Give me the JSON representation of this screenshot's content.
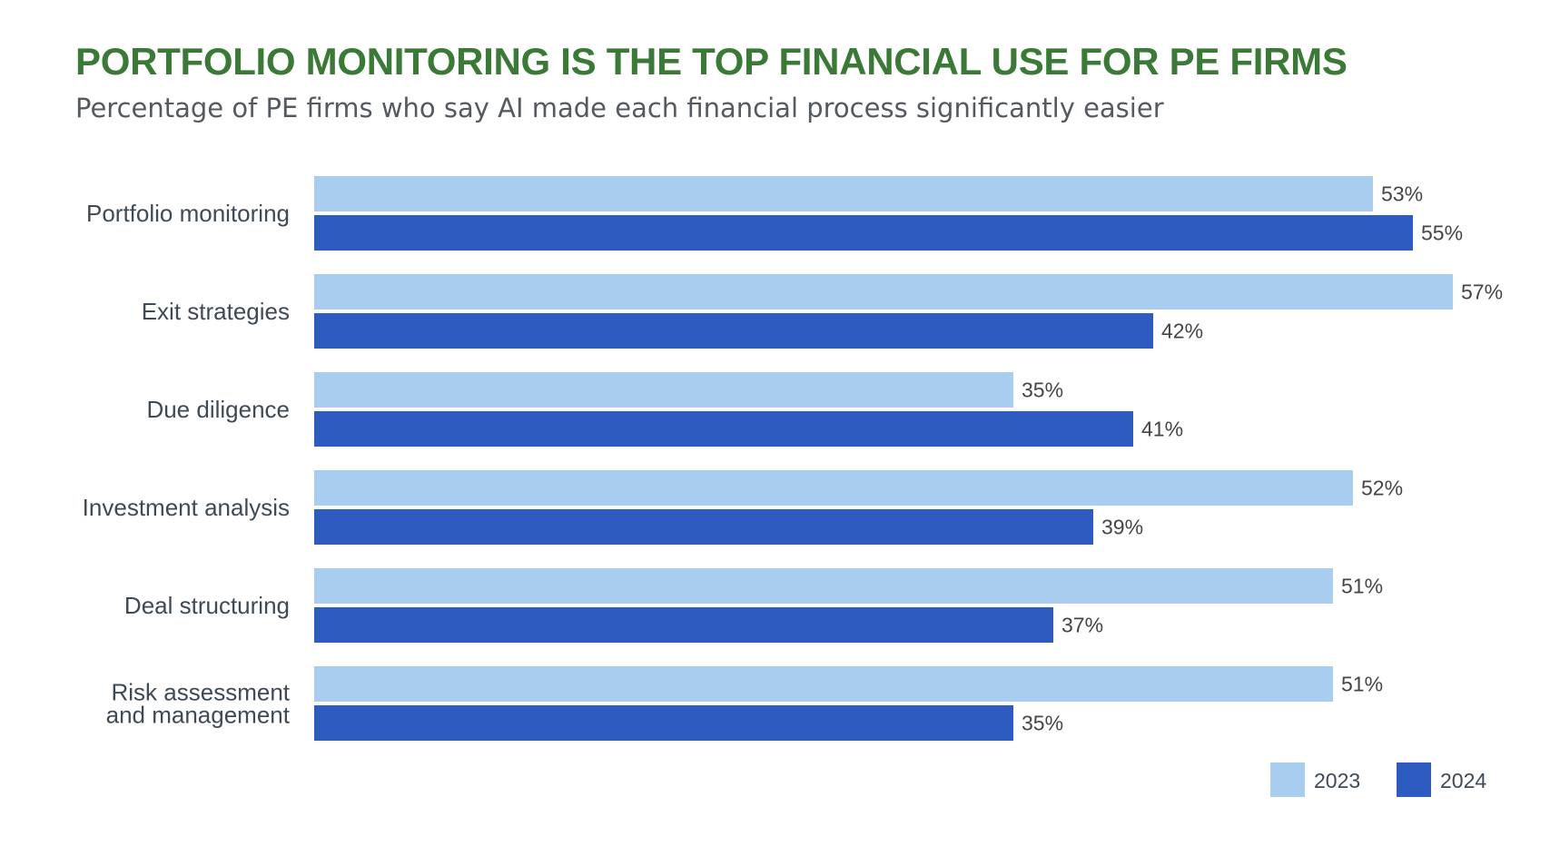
{
  "colors": {
    "title": "#3a7a36",
    "subtitle": "#555a60",
    "series_2023": "#a9cdef",
    "series_2024": "#2d5bc0"
  },
  "chart_data": {
    "type": "bar",
    "orientation": "horizontal",
    "title": "PORTFOLIO MONITORING IS THE TOP FINANCIAL USE FOR PE FIRMS",
    "subtitle": "Percentage of PE firms who say AI made each financial process significantly easier",
    "categories": [
      [
        "Portfolio monitoring"
      ],
      [
        "Exit strategies"
      ],
      [
        "Due diligence"
      ],
      [
        "Investment analysis"
      ],
      [
        "Deal structuring"
      ],
      [
        "Risk assessment",
        "and management"
      ]
    ],
    "series": [
      {
        "name": "2023",
        "values": [
          53,
          57,
          35,
          52,
          51,
          51
        ],
        "labels": [
          "53%",
          "57%",
          "35%",
          "52%",
          "51%",
          "51%"
        ]
      },
      {
        "name": "2024",
        "values": [
          55,
          42,
          41,
          39,
          37,
          35
        ],
        "labels": [
          "55%",
          "42%",
          "41%",
          "39%",
          "37%",
          "35%"
        ]
      }
    ],
    "unit": "%",
    "xlim": [
      0,
      57
    ],
    "grid": false,
    "legend_position": "bottom-right"
  }
}
